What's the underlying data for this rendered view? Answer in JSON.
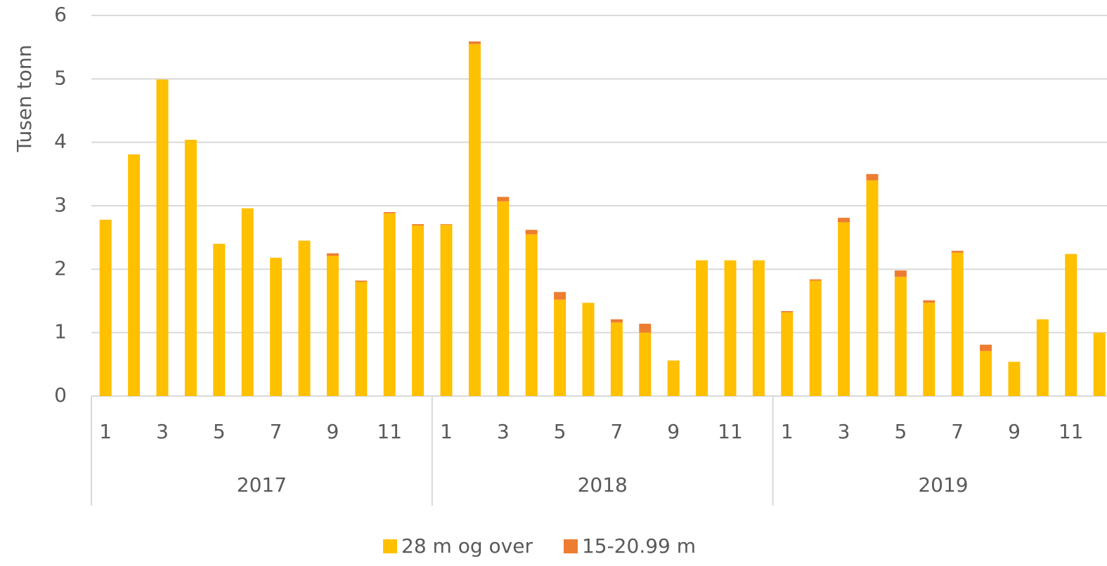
{
  "chart_data": {
    "type": "stacked_bar",
    "y_label": "Tusen tonn",
    "categories": [
      "1",
      null,
      "3",
      null,
      "5",
      null,
      "7",
      null,
      "9",
      null,
      "11",
      null,
      "1",
      null,
      "3",
      null,
      "5",
      null,
      "7",
      null,
      "9",
      null,
      "11",
      null,
      "1",
      null,
      "3",
      null,
      "5",
      null,
      "7",
      null,
      "9",
      null,
      "11",
      null
    ],
    "groups": [
      "2017",
      "2018",
      "2019"
    ],
    "series": [
      {
        "name": "28 m og over",
        "color": "#ffc000",
        "values": [
          2.78,
          3.81,
          4.99,
          4.04,
          2.4,
          2.96,
          2.18,
          2.45,
          2.21,
          1.8,
          2.88,
          2.69,
          2.7,
          5.55,
          3.07,
          2.55,
          1.52,
          1.47,
          1.16,
          1.0,
          0.56,
          2.14,
          2.14,
          2.14,
          1.32,
          1.82,
          2.74,
          3.4,
          1.88,
          1.47,
          2.26,
          0.71,
          0.54,
          1.21,
          2.24,
          1.0
        ]
      },
      {
        "name": "15-20.99 m",
        "color": "#ed7d31",
        "values": [
          0,
          0,
          0,
          0,
          0,
          0,
          0,
          0,
          0.04,
          0.02,
          0.02,
          0.02,
          0.01,
          0.04,
          0.07,
          0.07,
          0.12,
          0,
          0.05,
          0.14,
          0,
          0,
          0,
          0,
          0.02,
          0.02,
          0.07,
          0.1,
          0.1,
          0.04,
          0.03,
          0.1,
          0,
          0,
          0,
          0
        ]
      }
    ],
    "ylim": [
      0,
      6
    ],
    "yticks": [
      0,
      1,
      2,
      3,
      4,
      5,
      6
    ],
    "grid": true
  }
}
